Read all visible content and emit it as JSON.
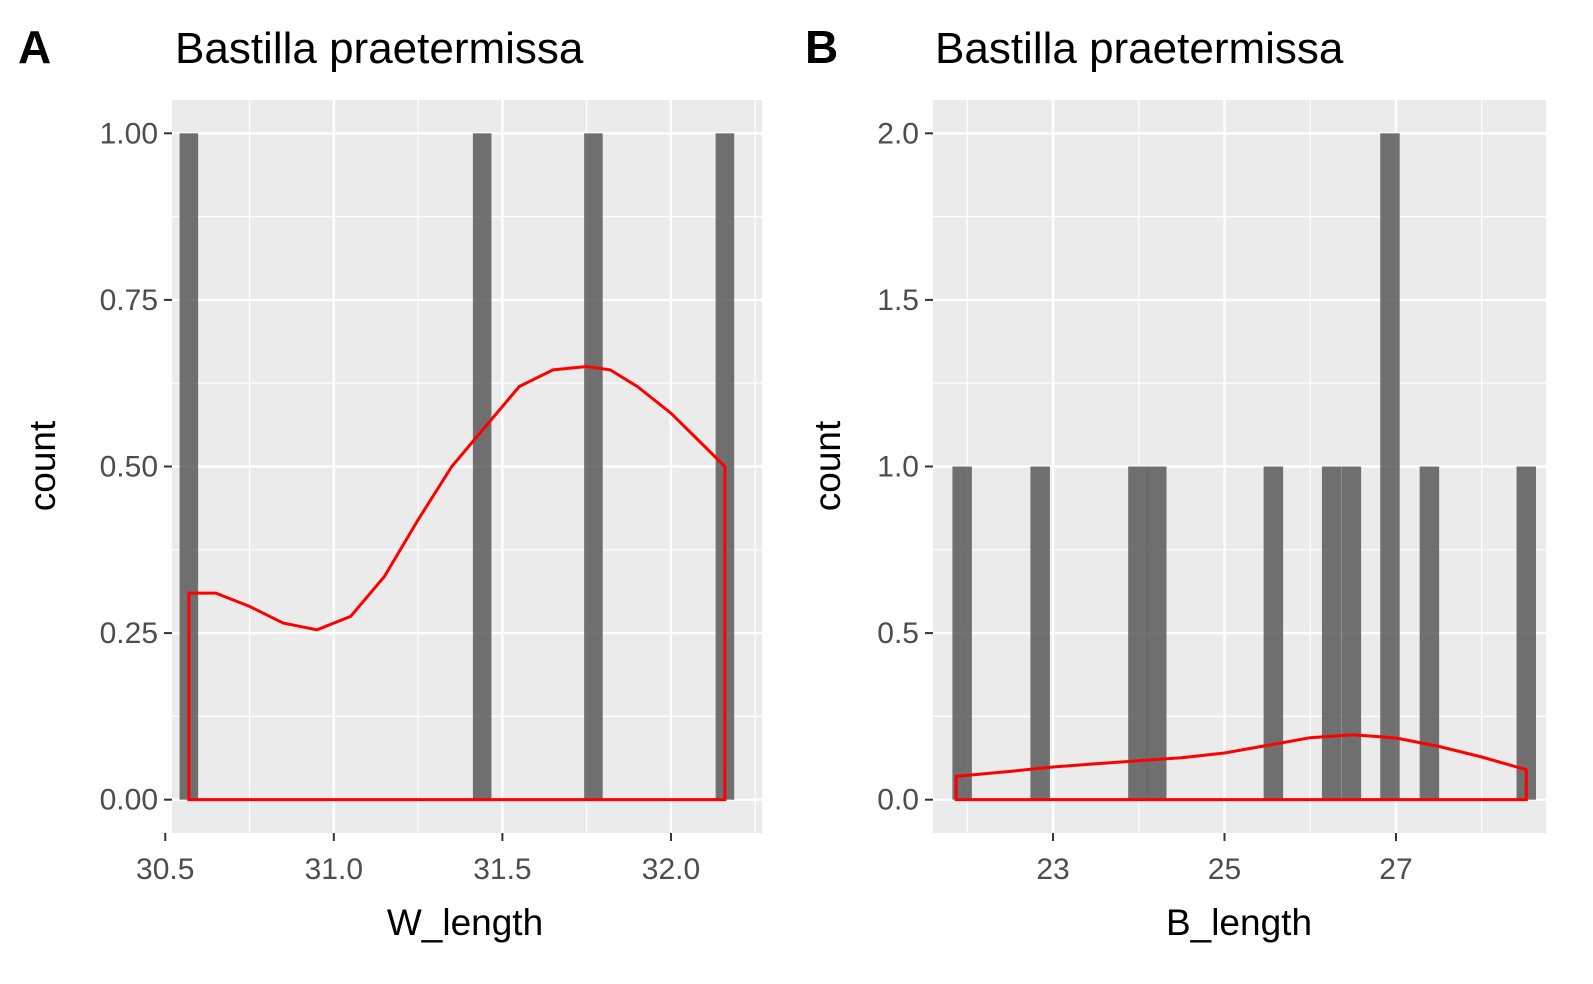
{
  "chart_data": [
    {
      "panel": "A",
      "type": "bar",
      "title": "Bastilla praetermissa",
      "xlabel": "W_length",
      "ylabel": "count",
      "xlim": [
        30.52,
        32.27
      ],
      "ylim": [
        -0.05,
        1.05
      ],
      "x_ticks": [
        "30.5",
        "31.0",
        "31.5",
        "32.0"
      ],
      "x_tick_values": [
        30.5,
        31.0,
        31.5,
        32.0
      ],
      "y_ticks": [
        "0.00",
        "0.25",
        "0.50",
        "0.75",
        "1.00"
      ],
      "y_tick_values": [
        0,
        0.25,
        0.5,
        0.75,
        1.0
      ],
      "bin_width": 0.055,
      "bars": [
        {
          "x": 30.57,
          "count": 1
        },
        {
          "x": 31.44,
          "count": 1
        },
        {
          "x": 31.77,
          "count": 1
        },
        {
          "x": 32.16,
          "count": 1
        }
      ],
      "density": {
        "color": "#ff0000",
        "x": [
          30.57,
          30.65,
          30.75,
          30.85,
          30.95,
          31.05,
          31.15,
          31.25,
          31.35,
          31.45,
          31.55,
          31.65,
          31.75,
          31.82,
          31.9,
          32.0,
          32.1,
          32.16
        ],
        "y": [
          0.31,
          0.31,
          0.29,
          0.265,
          0.255,
          0.275,
          0.335,
          0.42,
          0.5,
          0.56,
          0.62,
          0.645,
          0.65,
          0.645,
          0.62,
          0.58,
          0.53,
          0.5
        ]
      },
      "grid": true
    },
    {
      "panel": "B",
      "type": "bar",
      "title": "Bastilla praetermissa",
      "xlabel": "B_length",
      "ylabel": "count",
      "xlim": [
        21.6,
        28.75
      ],
      "ylim": [
        -0.1,
        2.1
      ],
      "x_ticks": [
        "23",
        "25",
        "27"
      ],
      "x_tick_values": [
        23,
        25,
        27
      ],
      "y_ticks": [
        "0.0",
        "0.5",
        "1.0",
        "1.5",
        "2.0"
      ],
      "y_tick_values": [
        0,
        0.5,
        1.0,
        1.5,
        2.0
      ],
      "bin_width": 0.227,
      "bars": [
        {
          "x": 21.94,
          "count": 1
        },
        {
          "x": 22.85,
          "count": 1
        },
        {
          "x": 23.99,
          "count": 1
        },
        {
          "x": 24.21,
          "count": 1
        },
        {
          "x": 25.57,
          "count": 1
        },
        {
          "x": 26.25,
          "count": 1
        },
        {
          "x": 26.48,
          "count": 1
        },
        {
          "x": 26.93,
          "count": 2
        },
        {
          "x": 27.39,
          "count": 1
        },
        {
          "x": 28.52,
          "count": 1
        }
      ],
      "density": {
        "color": "#ff0000",
        "x": [
          21.87,
          22.5,
          23.0,
          23.5,
          24.0,
          24.5,
          25.0,
          25.5,
          26.0,
          26.5,
          27.0,
          27.5,
          28.0,
          28.52
        ],
        "y": [
          0.07,
          0.085,
          0.098,
          0.108,
          0.117,
          0.126,
          0.14,
          0.163,
          0.186,
          0.195,
          0.185,
          0.16,
          0.128,
          0.09
        ]
      },
      "grid": true
    }
  ]
}
